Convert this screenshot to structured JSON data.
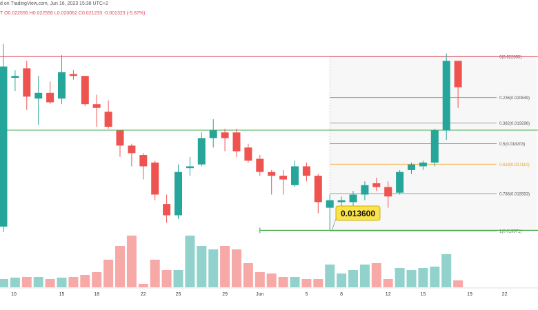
{
  "header": {
    "line1": "d on TradingView.com, Jun 16, 2023 15:38 UTC+2",
    "line2": "T  O0.022556  H0.022556  L0.020062  C0.021233  -0.001323 (-5.87%)"
  },
  "chart_data": {
    "type": "candlestick",
    "y_range": [
      0.0112,
      0.0251
    ],
    "volume_range": [
      0,
      1
    ],
    "x_tick_labels": [
      {
        "label": "10",
        "index": 0
      },
      {
        "label": "15",
        "index": 5
      },
      {
        "label": "18",
        "index": 8
      },
      {
        "label": "22",
        "index": 12
      },
      {
        "label": "25",
        "index": 15
      },
      {
        "label": "29",
        "index": 19
      },
      {
        "label": "Jun",
        "index": 22
      },
      {
        "label": "5",
        "index": 26
      },
      {
        "label": "8",
        "index": 29
      },
      {
        "label": "12",
        "index": 33
      },
      {
        "label": "15",
        "index": 36
      },
      {
        "label": "19",
        "index": 40
      },
      {
        "label": "22",
        "index": 43
      }
    ],
    "candles": [
      {
        "o": 0.0138,
        "h": 0.0235,
        "l": 0.0135,
        "c": 0.0223,
        "v": 0.12
      },
      {
        "o": 0.0217,
        "h": 0.0221,
        "l": 0.021,
        "c": 0.0218,
        "v": 0.14
      },
      {
        "o": 0.0222,
        "h": 0.0226,
        "l": 0.02,
        "c": 0.0207,
        "v": 0.15
      },
      {
        "o": 0.0206,
        "h": 0.0218,
        "l": 0.0192,
        "c": 0.0209,
        "v": 0.15
      },
      {
        "o": 0.0209,
        "h": 0.0215,
        "l": 0.0203,
        "c": 0.0204,
        "v": 0.12
      },
      {
        "o": 0.0206,
        "h": 0.0229,
        "l": 0.0203,
        "c": 0.022,
        "v": 0.14
      },
      {
        "o": 0.0219,
        "h": 0.0221,
        "l": 0.0216,
        "c": 0.0218,
        "v": 0.15
      },
      {
        "o": 0.0218,
        "h": 0.0218,
        "l": 0.0202,
        "c": 0.0203,
        "v": 0.18
      },
      {
        "o": 0.0203,
        "h": 0.0208,
        "l": 0.0191,
        "c": 0.0201,
        "v": 0.22
      },
      {
        "o": 0.0199,
        "h": 0.0205,
        "l": 0.019,
        "c": 0.0191,
        "v": 0.4
      },
      {
        "o": 0.0189,
        "h": 0.0189,
        "l": 0.0175,
        "c": 0.0181,
        "v": 0.6
      },
      {
        "o": 0.0181,
        "h": 0.0182,
        "l": 0.017,
        "c": 0.0177,
        "v": 0.75
      },
      {
        "o": 0.0176,
        "h": 0.0177,
        "l": 0.0163,
        "c": 0.017,
        "v": 0.05
      },
      {
        "o": 0.0172,
        "h": 0.0173,
        "l": 0.0152,
        "c": 0.0155,
        "v": 0.4
      },
      {
        "o": 0.015,
        "h": 0.0155,
        "l": 0.014,
        "c": 0.0144,
        "v": 0.25
      },
      {
        "o": 0.0144,
        "h": 0.0171,
        "l": 0.0142,
        "c": 0.0167,
        "v": 0.25
      },
      {
        "o": 0.0169,
        "h": 0.0175,
        "l": 0.0165,
        "c": 0.017,
        "v": 0.75
      },
      {
        "o": 0.0171,
        "h": 0.0188,
        "l": 0.017,
        "c": 0.0185,
        "v": 0.6
      },
      {
        "o": 0.0185,
        "h": 0.0195,
        "l": 0.018,
        "c": 0.0189,
        "v": 0.55
      },
      {
        "o": 0.0188,
        "h": 0.019,
        "l": 0.0178,
        "c": 0.0185,
        "v": 0.6
      },
      {
        "o": 0.0188,
        "h": 0.019,
        "l": 0.0175,
        "c": 0.0178,
        "v": 0.55
      },
      {
        "o": 0.018,
        "h": 0.0182,
        "l": 0.0172,
        "c": 0.0173,
        "v": 0.35
      },
      {
        "o": 0.0174,
        "h": 0.0176,
        "l": 0.0165,
        "c": 0.0167,
        "v": 0.22
      },
      {
        "o": 0.0167,
        "h": 0.0168,
        "l": 0.0155,
        "c": 0.0165,
        "v": 0.2
      },
      {
        "o": 0.0165,
        "h": 0.0168,
        "l": 0.0155,
        "c": 0.0163,
        "v": 0.15
      },
      {
        "o": 0.016,
        "h": 0.0173,
        "l": 0.0159,
        "c": 0.017,
        "v": 0.15
      },
      {
        "o": 0.017,
        "h": 0.0172,
        "l": 0.0162,
        "c": 0.0165,
        "v": 0.12
      },
      {
        "o": 0.0165,
        "h": 0.0166,
        "l": 0.0145,
        "c": 0.0151,
        "v": 0.12
      },
      {
        "o": 0.0148,
        "h": 0.0155,
        "l": 0.0136,
        "c": 0.0152,
        "v": 0.33
      },
      {
        "o": 0.0151,
        "h": 0.0154,
        "l": 0.0148,
        "c": 0.0152,
        "v": 0.2
      },
      {
        "o": 0.0151,
        "h": 0.0157,
        "l": 0.0149,
        "c": 0.0155,
        "v": 0.25
      },
      {
        "o": 0.0155,
        "h": 0.0162,
        "l": 0.0152,
        "c": 0.016,
        "v": 0.33
      },
      {
        "o": 0.0161,
        "h": 0.0164,
        "l": 0.0157,
        "c": 0.0159,
        "v": 0.35
      },
      {
        "o": 0.0159,
        "h": 0.0162,
        "l": 0.0148,
        "c": 0.0154,
        "v": 0.12
      },
      {
        "o": 0.0156,
        "h": 0.0168,
        "l": 0.0155,
        "c": 0.0167,
        "v": 0.28
      },
      {
        "o": 0.0168,
        "h": 0.0172,
        "l": 0.0166,
        "c": 0.0171,
        "v": 0.25
      },
      {
        "o": 0.017,
        "h": 0.0173,
        "l": 0.0168,
        "c": 0.0172,
        "v": 0.28
      },
      {
        "o": 0.0172,
        "h": 0.019,
        "l": 0.017,
        "c": 0.0189,
        "v": 0.3
      },
      {
        "o": 0.0189,
        "h": 0.023,
        "l": 0.0184,
        "c": 0.0226,
        "v": 0.48
      },
      {
        "o": 0.0226,
        "h": 0.0226,
        "l": 0.0201,
        "c": 0.0212,
        "v": 0.1
      }
    ],
    "horizontal_lines": [
      {
        "price": 0.02283,
        "color": "#e04a5a"
      },
      {
        "price": 0.01892,
        "color": "#4caf50"
      },
      {
        "price": 0.0136,
        "color": "#4caf50"
      }
    ],
    "fib_levels": [
      {
        "label": "0(0.022835)",
        "price": 0.022835,
        "color": "#9e9e9e"
      },
      {
        "label": "0.236(0.020649)",
        "price": 0.020649,
        "color": "#9e9e9e"
      },
      {
        "label": "0.382(0.019296)",
        "price": 0.019296,
        "color": "#9e9e9e"
      },
      {
        "label": "0.5(0.018203)",
        "price": 0.018203,
        "color": "#9e9e9e"
      },
      {
        "label": "0.618(0.017110)",
        "price": 0.01711,
        "color": "#f5b041"
      },
      {
        "label": "0.786(0.015553)",
        "price": 0.015553,
        "color": "#9e9e9e"
      },
      {
        "label": "1(0.013571)",
        "price": 0.013571,
        "color": "#9e9e9e"
      }
    ],
    "price_callout": {
      "label": "0.013600",
      "price": 0.0136
    },
    "colors": {
      "up": "#26a69a",
      "down": "#ef5350",
      "up_volume": "#92d2cc",
      "down_volume": "#f7a9a7"
    }
  }
}
